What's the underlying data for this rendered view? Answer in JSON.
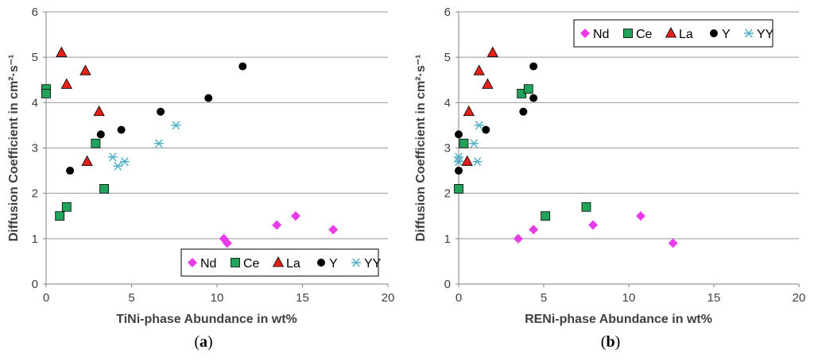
{
  "colors": {
    "Nd": "#e83ce8",
    "Ce": "#21a35b",
    "La": "#e32119",
    "Y": "#000000",
    "YY": "#4bacc6",
    "grid": "#9a9a9a",
    "axis": "#808080"
  },
  "chart_data": [
    {
      "panel": "a",
      "caption_open": "(",
      "caption_letter": "a",
      "caption_close": ")",
      "type": "scatter",
      "xlabel": "TiNi-phase Abundance in wt%",
      "ylabel": "Diffusion Coefficient in cm²·s⁻¹",
      "xlim": [
        0,
        20
      ],
      "ylim": [
        0,
        6
      ],
      "xticks": [
        0,
        5,
        10,
        15,
        20
      ],
      "yticks": [
        0,
        1,
        2,
        3,
        4,
        5,
        6
      ],
      "grid": "horizontal",
      "legend_position": "bottom-right",
      "series": [
        {
          "name": "Nd",
          "marker": "diamond",
          "points": [
            [
              10.4,
              1.0
            ],
            [
              10.6,
              0.9
            ],
            [
              13.5,
              1.3
            ],
            [
              14.6,
              1.5
            ],
            [
              16.8,
              1.2
            ]
          ]
        },
        {
          "name": "Ce",
          "marker": "square",
          "points": [
            [
              0.0,
              4.3
            ],
            [
              0.0,
              4.2
            ],
            [
              0.8,
              1.5
            ],
            [
              1.2,
              1.7
            ],
            [
              2.9,
              3.1
            ],
            [
              3.4,
              2.1
            ]
          ]
        },
        {
          "name": "La",
          "marker": "triangle",
          "points": [
            [
              0.9,
              5.1
            ],
            [
              1.2,
              4.4
            ],
            [
              2.3,
              4.7
            ],
            [
              2.4,
              2.7
            ],
            [
              3.1,
              3.8
            ]
          ]
        },
        {
          "name": "Y",
          "marker": "circle",
          "points": [
            [
              1.4,
              2.5
            ],
            [
              3.2,
              3.3
            ],
            [
              4.4,
              3.4
            ],
            [
              6.7,
              3.8
            ],
            [
              9.5,
              4.1
            ],
            [
              11.5,
              4.8
            ]
          ]
        },
        {
          "name": "YY",
          "marker": "asterisk",
          "points": [
            [
              3.9,
              2.8
            ],
            [
              4.2,
              2.6
            ],
            [
              4.6,
              2.7
            ],
            [
              6.6,
              3.1
            ],
            [
              7.6,
              3.5
            ]
          ]
        }
      ]
    },
    {
      "panel": "b",
      "caption_open": "(",
      "caption_letter": "b",
      "caption_close": ")",
      "type": "scatter",
      "xlabel": "RENi-phase Abundance in wt%",
      "ylabel": "Diffusion Coefficient in cm²·s⁻¹",
      "xlim": [
        0,
        20
      ],
      "ylim": [
        0,
        6
      ],
      "xticks": [
        0,
        5,
        10,
        15,
        20
      ],
      "yticks": [
        0,
        1,
        2,
        3,
        4,
        5,
        6
      ],
      "grid": "horizontal",
      "legend_position": "top-right",
      "series": [
        {
          "name": "Nd",
          "marker": "diamond",
          "points": [
            [
              3.5,
              1.0
            ],
            [
              4.4,
              1.2
            ],
            [
              7.9,
              1.3
            ],
            [
              10.7,
              1.5
            ],
            [
              12.6,
              0.9
            ]
          ]
        },
        {
          "name": "Ce",
          "marker": "square",
          "points": [
            [
              0.0,
              2.1
            ],
            [
              0.3,
              3.1
            ],
            [
              3.7,
              4.2
            ],
            [
              4.1,
              4.3
            ],
            [
              5.1,
              1.5
            ],
            [
              7.5,
              1.7
            ]
          ]
        },
        {
          "name": "La",
          "marker": "triangle",
          "points": [
            [
              0.5,
              2.7
            ],
            [
              0.6,
              3.8
            ],
            [
              1.2,
              4.7
            ],
            [
              1.7,
              4.4
            ],
            [
              2.0,
              5.1
            ]
          ]
        },
        {
          "name": "Y",
          "marker": "circle",
          "points": [
            [
              0.0,
              2.5
            ],
            [
              0.0,
              3.3
            ],
            [
              1.6,
              3.4
            ],
            [
              3.8,
              3.8
            ],
            [
              4.4,
              4.1
            ],
            [
              4.4,
              4.8
            ]
          ]
        },
        {
          "name": "YY",
          "marker": "asterisk",
          "points": [
            [
              0.0,
              2.8
            ],
            [
              0.0,
              2.7
            ],
            [
              0.9,
              3.1
            ],
            [
              1.1,
              2.7
            ],
            [
              1.2,
              3.5
            ]
          ]
        }
      ]
    }
  ]
}
